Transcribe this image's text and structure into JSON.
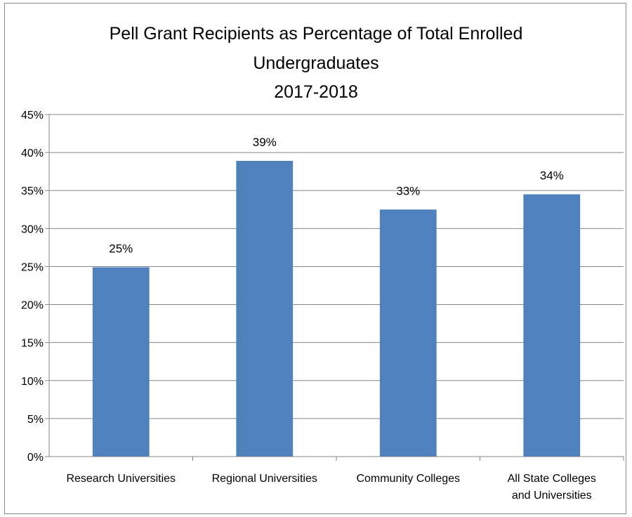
{
  "chart_data": {
    "type": "bar",
    "title": [
      "Pell Grant Recipients as Percentage of Total Enrolled",
      "Undergraduates",
      "2017-2018"
    ],
    "categories": [
      [
        "Research Universities"
      ],
      [
        "Regional Universities"
      ],
      [
        "Community Colleges"
      ],
      [
        "All State Colleges",
        "and Universities"
      ]
    ],
    "values": [
      0.249,
      0.389,
      0.325,
      0.345
    ],
    "data_labels": [
      "25%",
      "39%",
      "33%",
      "34%"
    ],
    "xlabel": "",
    "ylabel": "",
    "ylim": [
      0,
      0.45
    ],
    "y_ticks": [
      {
        "value": 0,
        "label": "0%"
      },
      {
        "value": 0.05,
        "label": "5%"
      },
      {
        "value": 0.1,
        "label": "10%"
      },
      {
        "value": 0.15,
        "label": "15%"
      },
      {
        "value": 0.2,
        "label": "20%"
      },
      {
        "value": 0.25,
        "label": "25%"
      },
      {
        "value": 0.3,
        "label": "30%"
      },
      {
        "value": 0.35,
        "label": "35%"
      },
      {
        "value": 0.4,
        "label": "40%"
      },
      {
        "value": 0.45,
        "label": "45%"
      }
    ],
    "grid": true,
    "legend": "none",
    "bar_color": "#4f81bd"
  }
}
